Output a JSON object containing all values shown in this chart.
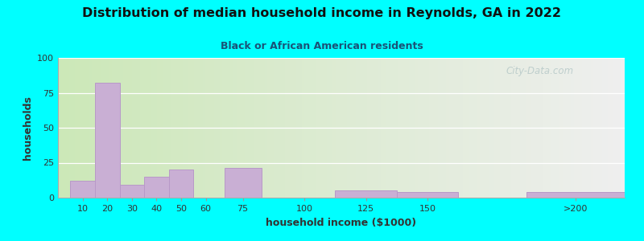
{
  "title": "Distribution of median household income in Reynolds, GA in 2022",
  "subtitle": "Black or African American residents",
  "xlabel": "household income ($1000)",
  "ylabel": "households",
  "bar_color": "#c9afd4",
  "bar_edge_color": "#b899c8",
  "positions": [
    10,
    20,
    30,
    40,
    50,
    60,
    75,
    100,
    125,
    150,
    210
  ],
  "widths": [
    10,
    10,
    10,
    10,
    10,
    10,
    15,
    25,
    25,
    25,
    40
  ],
  "values": [
    12,
    82,
    9,
    15,
    20,
    0,
    21,
    0,
    5,
    4,
    4
  ],
  "ylim": [
    0,
    100
  ],
  "yticks": [
    0,
    25,
    50,
    75,
    100
  ],
  "xtick_labels": [
    "10",
    "20",
    "30",
    "40",
    "50",
    "60",
    "75",
    "100",
    "125",
    "150",
    ">200"
  ],
  "xtick_positions": [
    10,
    20,
    30,
    40,
    50,
    60,
    75,
    100,
    125,
    150,
    210
  ],
  "xlim": [
    0,
    230
  ],
  "bg_color_left": "#cce8b8",
  "bg_color_right": "#efefef",
  "outer_bg": "#00ffff",
  "title_color": "#111111",
  "subtitle_color": "#1a5276",
  "axis_label_color": "#333333",
  "watermark": "City-Data.com",
  "title_fontsize": 11.5,
  "subtitle_fontsize": 9,
  "tick_fontsize": 8,
  "label_fontsize": 9
}
